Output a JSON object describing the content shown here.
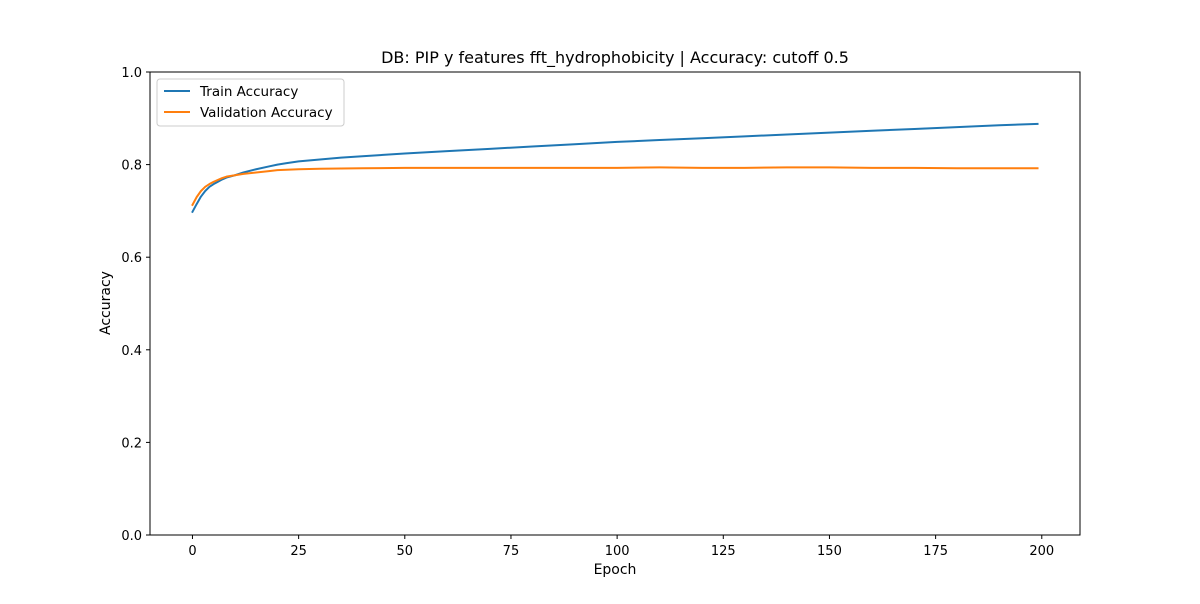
{
  "chart_data": {
    "type": "line",
    "title": "DB: PIP y features fft_hydrophobicity | Accuracy: cutoff 0.5",
    "xlabel": "Epoch",
    "ylabel": "Accuracy",
    "xlim": [
      -10,
      209
    ],
    "ylim": [
      0,
      1
    ],
    "xticks": [
      0,
      25,
      50,
      75,
      100,
      125,
      150,
      175,
      200
    ],
    "yticks": [
      0.0,
      0.2,
      0.4,
      0.6,
      0.8,
      1.0
    ],
    "ytick_labels": [
      "0.0",
      "0.2",
      "0.4",
      "0.6",
      "0.8",
      "1.0"
    ],
    "grid": false,
    "legend_position": "upper-left",
    "series": [
      {
        "name": "Train Accuracy",
        "color": "#1f77b4",
        "points": [
          [
            0,
            0.698
          ],
          [
            1,
            0.715
          ],
          [
            2,
            0.731
          ],
          [
            3,
            0.743
          ],
          [
            4,
            0.752
          ],
          [
            5,
            0.758
          ],
          [
            6,
            0.763
          ],
          [
            7,
            0.768
          ],
          [
            8,
            0.772
          ],
          [
            10,
            0.777
          ],
          [
            12,
            0.783
          ],
          [
            15,
            0.79
          ],
          [
            18,
            0.796
          ],
          [
            20,
            0.8
          ],
          [
            22,
            0.803
          ],
          [
            25,
            0.807
          ],
          [
            30,
            0.811
          ],
          [
            35,
            0.815
          ],
          [
            40,
            0.818
          ],
          [
            50,
            0.824
          ],
          [
            60,
            0.829
          ],
          [
            70,
            0.834
          ],
          [
            80,
            0.839
          ],
          [
            90,
            0.844
          ],
          [
            100,
            0.849
          ],
          [
            110,
            0.853
          ],
          [
            120,
            0.857
          ],
          [
            130,
            0.861
          ],
          [
            140,
            0.865
          ],
          [
            150,
            0.869
          ],
          [
            160,
            0.873
          ],
          [
            170,
            0.877
          ],
          [
            180,
            0.881
          ],
          [
            190,
            0.885
          ],
          [
            199,
            0.888
          ]
        ]
      },
      {
        "name": "Validation Accuracy",
        "color": "#ff7f0e",
        "points": [
          [
            0,
            0.713
          ],
          [
            1,
            0.73
          ],
          [
            2,
            0.743
          ],
          [
            3,
            0.752
          ],
          [
            4,
            0.758
          ],
          [
            5,
            0.763
          ],
          [
            6,
            0.767
          ],
          [
            7,
            0.771
          ],
          [
            8,
            0.774
          ],
          [
            10,
            0.777
          ],
          [
            12,
            0.78
          ],
          [
            15,
            0.783
          ],
          [
            18,
            0.786
          ],
          [
            20,
            0.788
          ],
          [
            25,
            0.79
          ],
          [
            30,
            0.791
          ],
          [
            40,
            0.792
          ],
          [
            50,
            0.793
          ],
          [
            60,
            0.793
          ],
          [
            70,
            0.793
          ],
          [
            80,
            0.793
          ],
          [
            90,
            0.793
          ],
          [
            100,
            0.793
          ],
          [
            110,
            0.794
          ],
          [
            120,
            0.793
          ],
          [
            130,
            0.793
          ],
          [
            140,
            0.794
          ],
          [
            150,
            0.794
          ],
          [
            160,
            0.793
          ],
          [
            170,
            0.793
          ],
          [
            180,
            0.792
          ],
          [
            190,
            0.792
          ],
          [
            199,
            0.792
          ]
        ]
      }
    ]
  }
}
